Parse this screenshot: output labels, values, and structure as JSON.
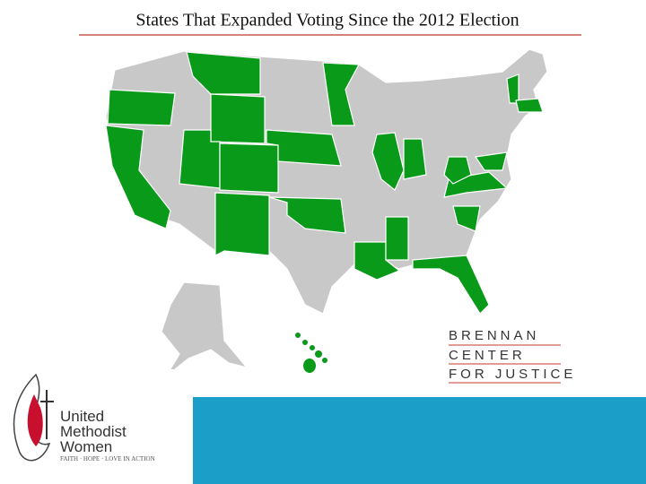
{
  "header": {
    "title": "States That Expanded Voting Since the 2012 Election"
  },
  "brennan_logo": {
    "lines": [
      "BRENNAN",
      "CENTER",
      "FOR JUSTICE"
    ]
  },
  "umw_logo": {
    "lines": [
      "United",
      "Methodist",
      "Women"
    ],
    "tagline": "FAITH · HOPE · LOVE IN ACTION"
  }
}
